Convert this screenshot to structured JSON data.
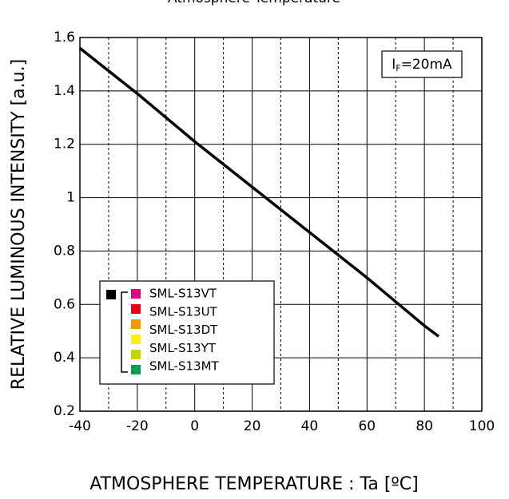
{
  "chart_data": {
    "type": "line",
    "title": "Atmosphere Temperature",
    "x_label": "ATMOSPHERE TEMPERATURE : Ta [ºC]",
    "y_label": "RELATIVE LUMINOUS INTENSITY [a.u.]",
    "annotation": {
      "main": "I",
      "sub": "F",
      "rest": "=20mA"
    },
    "x": [
      -40,
      -20,
      0,
      20,
      40,
      60,
      80,
      85
    ],
    "series": [
      {
        "color": "#000000",
        "values": [
          1.56,
          1.39,
          1.21,
          1.04,
          0.87,
          0.7,
          0.52,
          0.48
        ]
      }
    ],
    "xlim": [
      -40,
      100
    ],
    "xticks": [
      -40,
      -20,
      0,
      20,
      40,
      60,
      80,
      100
    ],
    "xminorticks": [
      -30,
      -10,
      10,
      30,
      50,
      70,
      90
    ],
    "ylim": [
      0.2,
      1.6
    ],
    "yticks": [
      0.2,
      0.4,
      0.6,
      0.8,
      1.0,
      1.2,
      1.4,
      1.6
    ],
    "grid": true,
    "legend": [
      {
        "name": "SML-S13VT",
        "colors": [
          "#e4007f"
        ]
      },
      {
        "name": "SML-S13UT",
        "colors": [
          "#e60012"
        ]
      },
      {
        "name": "SML-S13DT",
        "colors": [
          "#f39800"
        ]
      },
      {
        "name": "SML-S13YT",
        "colors": [
          "#fff100",
          "#c8d400"
        ]
      },
      {
        "name": "SML-S13MT",
        "colors": [
          "#00a051"
        ]
      }
    ]
  }
}
